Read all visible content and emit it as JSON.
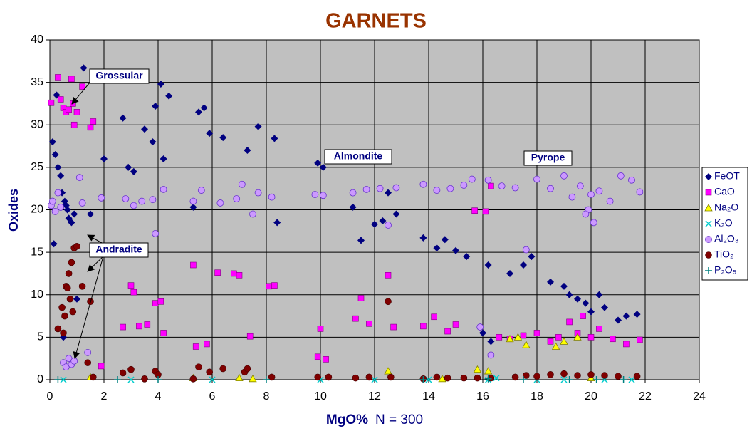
{
  "chart_data": {
    "type": "scatter",
    "title": "GARNETS",
    "x_label": "MgO%",
    "x_note": "N = 300",
    "y_label": "Oxides",
    "xlim": [
      0,
      24
    ],
    "xticks": [
      0,
      2,
      4,
      6,
      8,
      10,
      12,
      14,
      16,
      18,
      20,
      22,
      24
    ],
    "ylim": [
      0,
      40
    ],
    "yticks": [
      0,
      5,
      10,
      15,
      20,
      25,
      30,
      35,
      40
    ],
    "grid": true,
    "legend": "right",
    "background": "#c0c0c0",
    "annotations": [
      "Grossular",
      "Almondite",
      "Pyrope",
      "Andradite"
    ],
    "series": [
      {
        "name": "FeOT",
        "color": "#000080",
        "marker": "diamond",
        "x": [
          0.1,
          0.15,
          0.2,
          0.25,
          0.3,
          0.4,
          0.45,
          0.5,
          0.55,
          0.6,
          0.65,
          0.7,
          0.8,
          0.9,
          1.0,
          1.25,
          1.5,
          2.0,
          2.7,
          2.9,
          3.1,
          3.5,
          3.8,
          3.9,
          4.1,
          4.2,
          4.4,
          5.3,
          5.5,
          5.7,
          5.9,
          6.4,
          7.3,
          7.7,
          8.3,
          8.4,
          9.9,
          10.1,
          11.2,
          11.5,
          12.0,
          12.5,
          12.8,
          13.8,
          14.3,
          14.6,
          15.0,
          15.4,
          16.2,
          16.3,
          17.0,
          17.5,
          17.8,
          18.5,
          19.0,
          19.2,
          19.5,
          19.8,
          20.0,
          20.3,
          20.5,
          21.0,
          21.3,
          21.7,
          12.3,
          16.0
        ],
        "values": [
          28,
          16,
          26.5,
          33.5,
          25,
          24,
          22,
          5,
          21,
          20.5,
          20,
          19,
          18.5,
          19.5,
          9.5,
          36.7,
          19.5,
          26,
          30.8,
          25,
          24.5,
          29.5,
          28,
          32.2,
          34.8,
          26,
          33.4,
          20.3,
          31.5,
          32,
          29,
          28.5,
          27,
          29.8,
          28.4,
          18.5,
          25.5,
          25,
          20.3,
          16.4,
          18.3,
          22,
          19.5,
          16.7,
          15.5,
          16.5,
          15.2,
          14.5,
          13.5,
          4.5,
          12.5,
          13.5,
          14.5,
          11.5,
          11,
          10,
          9.5,
          9,
          8,
          10,
          8.5,
          7,
          7.5,
          7.7,
          18.7,
          5.5
        ]
      },
      {
        "name": "CaO",
        "color": "#ff00ff",
        "marker": "square",
        "x": [
          0.05,
          0.3,
          0.4,
          0.5,
          0.6,
          0.7,
          0.8,
          0.85,
          0.9,
          1.0,
          1.2,
          1.5,
          1.6,
          1.9,
          2.7,
          3.0,
          3.1,
          3.3,
          3.6,
          3.9,
          4.1,
          4.2,
          5.3,
          5.4,
          5.8,
          6.2,
          6.8,
          7.0,
          7.4,
          8.1,
          8.3,
          9.9,
          10.0,
          10.2,
          11.3,
          11.5,
          11.8,
          12.5,
          12.7,
          13.8,
          14.2,
          14.7,
          15.0,
          15.7,
          16.1,
          16.3,
          16.6,
          17.0,
          17.5,
          18.0,
          18.5,
          18.8,
          19.2,
          19.5,
          19.7,
          20.0,
          20.3,
          20.8,
          21.3,
          21.8
        ],
        "values": [
          32.6,
          35.6,
          33,
          32,
          31.5,
          31.8,
          35.4,
          32.5,
          30,
          31.5,
          34.5,
          29.7,
          30.4,
          1.6,
          6.2,
          11.1,
          10.3,
          6.3,
          6.5,
          9,
          9.2,
          5.5,
          13.5,
          3.9,
          4.2,
          12.6,
          12.5,
          12.3,
          5.1,
          11,
          11.1,
          2.7,
          6,
          2.4,
          7.2,
          9.6,
          6.6,
          12.3,
          6.2,
          6.3,
          7.4,
          5.7,
          6.5,
          19.9,
          19.8,
          22.8,
          5,
          4.8,
          5.2,
          5.5,
          4.5,
          5,
          6.8,
          5.5,
          7.5,
          5,
          6,
          4.8,
          4.2,
          4.7
        ]
      },
      {
        "name": "Na₂O",
        "color": "#ffff00",
        "marker": "triangle",
        "x": [
          12.5,
          15.8,
          16.2,
          17.0,
          17.3,
          17.6,
          18.7,
          19.0,
          19.5,
          1.5,
          5.3,
          7.0,
          7.5,
          14.5,
          20.0
        ],
        "values": [
          1.0,
          1.2,
          1.0,
          4.8,
          5.0,
          4.1,
          3.9,
          4.5,
          5.0,
          0.3,
          0.2,
          0.2,
          0.1,
          0.1,
          0.2
        ]
      },
      {
        "name": "K₂O",
        "color": "#00cccc",
        "marker": "cross",
        "x": [
          0.5,
          3.0,
          6.0,
          10.0,
          12.0,
          14.0,
          16.2,
          16.5,
          18.0,
          19.0,
          20.5,
          21.5
        ],
        "values": [
          0,
          0,
          0,
          0,
          0,
          0,
          0,
          0.2,
          0,
          0,
          0,
          0
        ]
      },
      {
        "name": "Al₂O₃",
        "color": "#cc99ff",
        "marker": "circle",
        "x": [
          0.05,
          0.1,
          0.2,
          0.3,
          0.4,
          0.5,
          0.6,
          0.7,
          0.8,
          0.9,
          1.1,
          1.2,
          1.4,
          1.9,
          2.8,
          3.1,
          3.4,
          3.8,
          3.9,
          4.2,
          5.3,
          5.6,
          6.3,
          6.9,
          7.1,
          7.5,
          7.7,
          8.2,
          9.8,
          10.1,
          11.2,
          11.7,
          12.2,
          12.5,
          12.8,
          13.8,
          14.3,
          14.8,
          15.3,
          15.6,
          16.2,
          16.3,
          16.7,
          17.2,
          17.6,
          18.0,
          18.5,
          19.0,
          19.3,
          19.6,
          19.9,
          20.1,
          20.3,
          20.7,
          21.1,
          21.5,
          21.8,
          19.8,
          20.0,
          15.9
        ],
        "values": [
          20.5,
          21,
          19.8,
          22,
          20.3,
          2,
          1.5,
          2.5,
          1.8,
          2.2,
          23.8,
          20.8,
          3.2,
          21.4,
          21.3,
          20.5,
          21,
          21.2,
          17.2,
          22.4,
          21,
          22.3,
          20.8,
          21.3,
          23,
          19.5,
          22,
          21.5,
          21.8,
          21.7,
          22,
          22.4,
          22.5,
          18.2,
          22.6,
          23,
          22.3,
          22.5,
          22.9,
          23.6,
          23.5,
          2.9,
          22.8,
          22.6,
          15.3,
          23.6,
          22.5,
          24,
          21.5,
          22.8,
          20,
          18.5,
          22.2,
          21,
          24,
          23.5,
          22.1,
          19.5,
          21.8,
          6.2
        ]
      },
      {
        "name": "TiO₂",
        "color": "#800000",
        "marker": "dot",
        "x": [
          0.3,
          0.45,
          0.5,
          0.55,
          0.6,
          0.7,
          0.75,
          0.8,
          0.9,
          1.0,
          0.85,
          0.65,
          1.2,
          1.5,
          1.4,
          1.6,
          2.7,
          3.0,
          3.5,
          3.9,
          4.0,
          5.3,
          5.5,
          5.9,
          6.4,
          7.2,
          7.3,
          8.2,
          9.9,
          10.3,
          11.3,
          11.8,
          12.5,
          12.6,
          13.8,
          14.3,
          14.7,
          15.3,
          15.8,
          16.3,
          17.2,
          17.6,
          18.0,
          18.5,
          19.0,
          19.5,
          20.0,
          20.5,
          21.0,
          21.7
        ],
        "values": [
          6,
          8.5,
          5.5,
          7.5,
          11,
          12.5,
          9.5,
          13.8,
          15.5,
          15.7,
          8,
          10.8,
          11,
          9.2,
          2,
          0.3,
          0.8,
          1.2,
          0.1,
          1,
          0.6,
          0.1,
          1.5,
          0.9,
          1.3,
          0.9,
          1.3,
          0.3,
          0.3,
          0.3,
          0.2,
          0.3,
          9.2,
          0.3,
          0.1,
          0.3,
          0.2,
          0.2,
          0.2,
          0.2,
          0.3,
          0.5,
          0.4,
          0.6,
          0.7,
          0.5,
          0.6,
          0.5,
          0.4,
          0.4
        ]
      },
      {
        "name": "P₂O₅",
        "color": "#008080",
        "marker": "plus",
        "x": [
          0.3,
          2.5,
          4,
          8,
          13.8,
          16.2,
          17.5,
          19.2,
          20.2,
          21.2
        ],
        "values": [
          0,
          0,
          0,
          0,
          0,
          0.1,
          0,
          0,
          0,
          0
        ]
      }
    ]
  }
}
